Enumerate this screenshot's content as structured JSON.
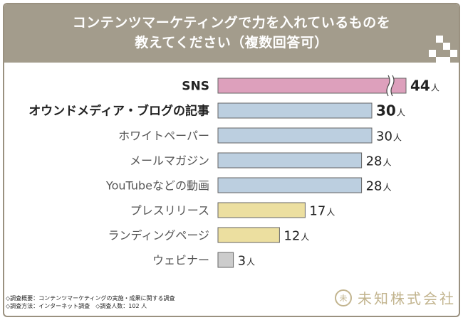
{
  "header": {
    "title_line1": "コンテンツマーケティングで力を入れているものを",
    "title_line2": "教えてください（複数回答可）"
  },
  "chart_data": {
    "type": "bar",
    "orientation": "horizontal",
    "title": "コンテンツマーケティングで力を入れているものを教えてください（複数回答可）",
    "unit": "人",
    "axis_break_on": "SNS",
    "categories": [
      "SNS",
      "オウンドメディア・ブログの記事",
      "ホワイトペーパー",
      "メールマガジン",
      "YouTubeなどの動画",
      "プレスリリース",
      "ランディングページ",
      "ウェビナー"
    ],
    "values": [
      44,
      30,
      30,
      28,
      28,
      17,
      12,
      3
    ],
    "value_labels": [
      "44",
      "30",
      "30",
      "28",
      "28",
      "17",
      "12",
      "3"
    ],
    "colors": [
      "#dda0bc",
      "#bccfe0",
      "#bccfe0",
      "#bccfe0",
      "#bccfe0",
      "#ecdfa0",
      "#ecdfa0",
      "#cccccc"
    ],
    "bold": [
      true,
      true,
      false,
      false,
      false,
      false,
      false,
      false
    ]
  },
  "footer": {
    "note1": "◇調査概要：コンテンツマーケティングの実施・成果に関する調査",
    "note2": "◇調査方法：インターネット調査　◇調査人数：102 人"
  },
  "logo": {
    "mark_text": "未",
    "text": "未知株式会社"
  }
}
